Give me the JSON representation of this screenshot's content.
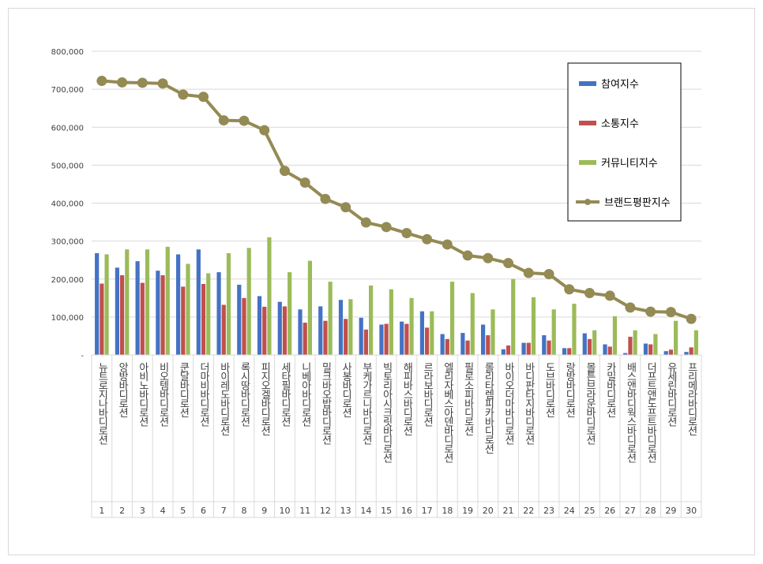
{
  "chart_data": {
    "type": "bar",
    "title": "",
    "xlabel": "",
    "ylabel": "",
    "ylim": [
      0,
      800000
    ],
    "y_ticks": [
      "-",
      "100,000",
      "200,000",
      "300,000",
      "400,000",
      "500,000",
      "600,000",
      "700,000",
      "800,000"
    ],
    "grid": true,
    "legend_position": "top-right",
    "ranks": [
      "1",
      "2",
      "3",
      "4",
      "5",
      "6",
      "7",
      "8",
      "9",
      "10",
      "11",
      "12",
      "13",
      "14",
      "15",
      "16",
      "17",
      "18",
      "19",
      "20",
      "21",
      "22",
      "23",
      "24",
      "25",
      "26",
      "27",
      "28",
      "29",
      "30"
    ],
    "categories": [
      "뉴트로지나바디로션",
      "앙방바디로션",
      "아비노바디로션",
      "비오템바디로션",
      "쿤달바디로션",
      "더마비바디로션",
      "바이레도바디로션",
      "록시땅바디로션",
      "피지오겔바디로션",
      "세타필바디로션",
      "니베아바디로션",
      "밀크바오밥바디로션",
      "사봉바디로션",
      "부케가르니바디로션",
      "빅토리아시크릿바디로션",
      "해피바스바디로션",
      "르라보바디로션",
      "엘리자베스아덴바디로션",
      "필로소피바디로션",
      "롤리타렘피카바디로션",
      "바이오더마바디로션",
      "바디판타지바디로션",
      "도브바디로션",
      "랑방바디로션",
      "몰튼브라운바디로션",
      "카밀바디로션",
      "배스앤바디웍스바디로션",
      "더프트앤도프트바디로션",
      "유세린바디로션",
      "프리메라바디로션"
    ],
    "series": [
      {
        "name": "참여지수",
        "color": "#4472c4",
        "kind": "bar",
        "values": [
          268000,
          230000,
          247000,
          222000,
          265000,
          278000,
          218000,
          185000,
          155000,
          140000,
          120000,
          128000,
          145000,
          98000,
          80000,
          88000,
          115000,
          55000,
          58000,
          80000,
          15000,
          32000,
          52000,
          18000,
          57000,
          28000,
          5000,
          30000,
          10000,
          8000
        ]
      },
      {
        "name": "소통지수",
        "color": "#c0504d",
        "kind": "bar",
        "values": [
          188000,
          210000,
          190000,
          210000,
          180000,
          187000,
          132000,
          150000,
          127000,
          128000,
          85000,
          90000,
          95000,
          67000,
          82000,
          82000,
          72000,
          42000,
          38000,
          52000,
          25000,
          32000,
          38000,
          18000,
          42000,
          22000,
          48000,
          28000,
          14000,
          20000
        ]
      },
      {
        "name": "커뮤니티지수",
        "color": "#9bbb59",
        "kind": "bar",
        "values": [
          265000,
          278000,
          278000,
          285000,
          240000,
          215000,
          268000,
          282000,
          310000,
          218000,
          248000,
          193000,
          147000,
          183000,
          173000,
          150000,
          115000,
          193000,
          163000,
          120000,
          200000,
          152000,
          120000,
          135000,
          65000,
          102000,
          65000,
          55000,
          90000,
          65000
        ]
      },
      {
        "name": "브랜드평판지수",
        "color": "#948a54",
        "kind": "line",
        "values": [
          722000,
          718000,
          717000,
          715000,
          686000,
          680000,
          618000,
          617000,
          592000,
          485000,
          454000,
          411000,
          389000,
          349000,
          337000,
          321000,
          305000,
          291000,
          262000,
          255000,
          242000,
          216000,
          213000,
          173000,
          163000,
          156000,
          125000,
          114000,
          113000,
          95000
        ]
      }
    ]
  }
}
